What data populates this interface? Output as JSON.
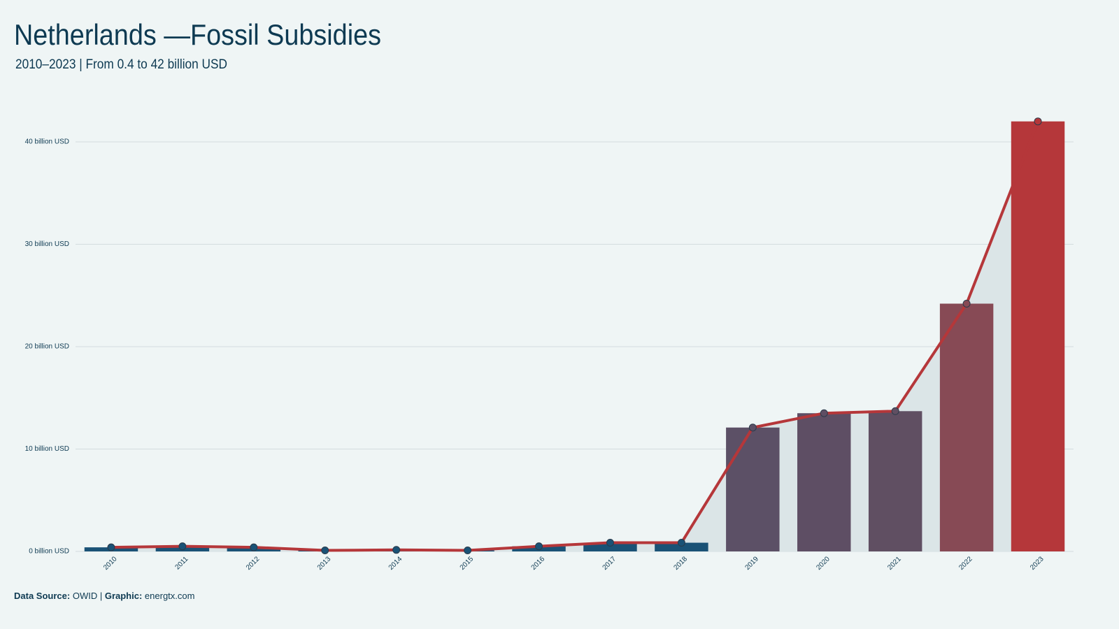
{
  "chart_data": {
    "type": "bar-line",
    "title": "Netherlands —Fossil Subsidies",
    "subtitle": "2010–2023 | From 0.4 to 42 billion USD",
    "categories": [
      "2010",
      "2011",
      "2012",
      "2013",
      "2014",
      "2015",
      "2016",
      "2017",
      "2018",
      "2019",
      "2020",
      "2021",
      "2022",
      "2023"
    ],
    "values": [
      0.4,
      0.5,
      0.4,
      0.1,
      0.15,
      0.1,
      0.5,
      0.85,
      0.85,
      12.1,
      13.5,
      13.7,
      24.2,
      42
    ],
    "colors": [
      "#1a5276",
      "#1a5276",
      "#1a5276",
      "#1a5276",
      "#1a5276",
      "#1a5276",
      "#1a5276",
      "#1a5276",
      "#1a5276",
      "#5c5066",
      "#5e4e64",
      "#604f62",
      "#874a55",
      "#b5373a"
    ],
    "line_color": "#b5373a",
    "area_color": "#dbe5e7",
    "ylim": [
      0,
      44
    ],
    "yticks": [
      {
        "value": 0,
        "label": "0 billion USD"
      },
      {
        "value": 10,
        "label": "10 billion USD"
      },
      {
        "value": 20,
        "label": "20 billion USD"
      },
      {
        "value": 30,
        "label": "30 billion USD"
      },
      {
        "value": 40,
        "label": "40 billion USD"
      }
    ],
    "grid": true,
    "footer": {
      "source_label": "Data Source:",
      "source": "OWID |",
      "graphic_label": "Graphic:",
      "graphic": "energtx.com"
    }
  }
}
